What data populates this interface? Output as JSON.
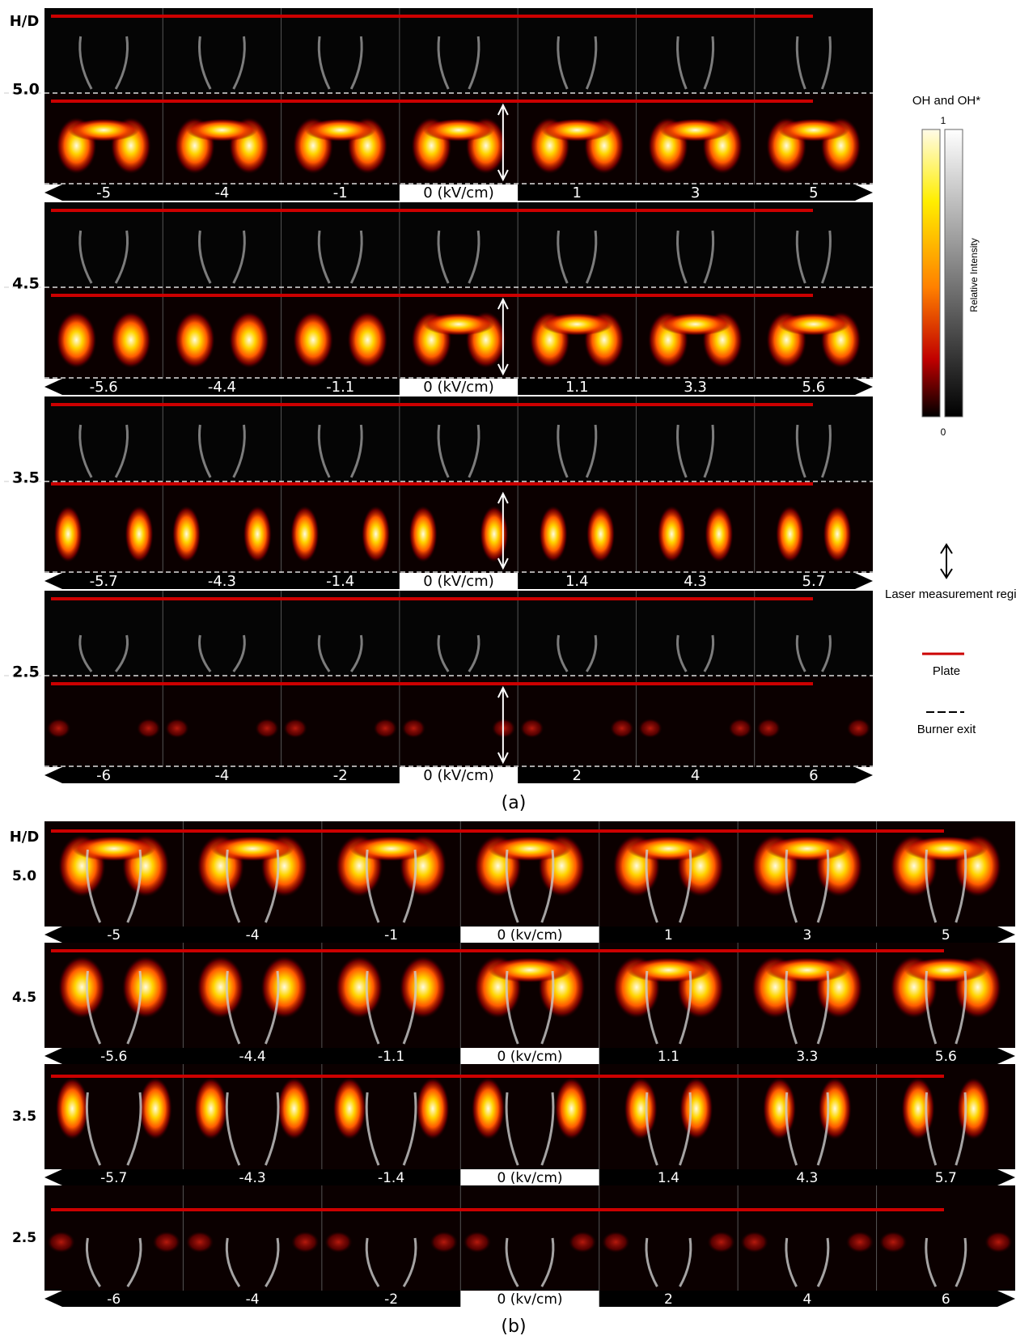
{
  "panel_a": {
    "label": "(a)",
    "axis_label": "H/D",
    "groups": [
      {
        "h_d": "5.0",
        "fields": [
          "-5",
          "-4",
          "-1",
          "0 (kV/cm)",
          "1",
          "3",
          "5"
        ]
      },
      {
        "h_d": "4.5",
        "fields": [
          "-5.6",
          "-4.4",
          "-1.1",
          "0 (kV/cm)",
          "1.1",
          "3.3",
          "5.6"
        ]
      },
      {
        "h_d": "3.5",
        "fields": [
          "-5.7",
          "-4.3",
          "-1.4",
          "0 (kV/cm)",
          "1.4",
          "4.3",
          "5.7"
        ]
      },
      {
        "h_d": "2.5",
        "fields": [
          "-6",
          "-4",
          "-2",
          "0 (kV/cm)",
          "2",
          "4",
          "6"
        ]
      }
    ]
  },
  "legend": {
    "title": "OH and OH*",
    "max": "1",
    "min": "0",
    "axis_label": "Relative Intensity",
    "items": [
      "Laser measurement region",
      "Plate",
      "Burner exit"
    ]
  },
  "panel_b": {
    "label": "(b)",
    "axis_label": "H/D",
    "groups": [
      {
        "h_d": "5.0",
        "fields": [
          "-5",
          "-4",
          "-1",
          "0 (kv/cm)",
          "1",
          "3",
          "5"
        ]
      },
      {
        "h_d": "4.5",
        "fields": [
          "-5.6",
          "-4.4",
          "-1.1",
          "0 (kv/cm)",
          "1.1",
          "3.3",
          "5.6"
        ]
      },
      {
        "h_d": "3.5",
        "fields": [
          "-5.7",
          "-4.3",
          "-1.4",
          "0 (kv/cm)",
          "1.4",
          "4.3",
          "5.7"
        ]
      },
      {
        "h_d": "2.5",
        "fields": [
          "-6",
          "-4",
          "-2",
          "0 (kv/cm)",
          "2",
          "4",
          "6"
        ]
      }
    ]
  }
}
